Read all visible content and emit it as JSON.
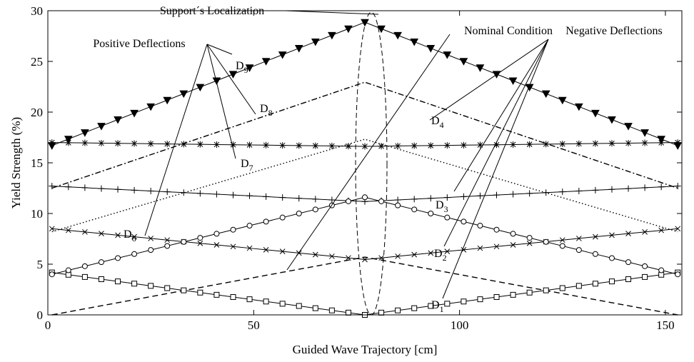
{
  "chart_data": {
    "type": "line",
    "xlabel": "Guided Wave Trajectory [cm]",
    "ylabel": "Yield Strength (%)",
    "xlim": [
      0,
      154
    ],
    "ylim": [
      0,
      30
    ],
    "xticks": [
      0,
      50,
      100,
      150
    ],
    "yticks": [
      0,
      5,
      10,
      15,
      20,
      25,
      30
    ],
    "annotations": [
      "Support´s Localization",
      "Positive Deflections",
      "Negative Deflections"
    ],
    "x": [
      1,
      5,
      9,
      13,
      17,
      21,
      25,
      29,
      33,
      37,
      41,
      45,
      49,
      53,
      57,
      61,
      65,
      69,
      73,
      77,
      81,
      85,
      89,
      93,
      97,
      101,
      105,
      109,
      113,
      117,
      121,
      125,
      129,
      133,
      137,
      141,
      145,
      149,
      153
    ],
    "series": [
      {
        "name": "Nominal  Condition",
        "color": "#000000",
        "dash": "dashed",
        "marker": "none",
        "values": [
          0,
          0.3,
          0.6,
          0.9,
          1.2,
          1.5,
          1.8,
          2.1,
          2.4,
          2.7,
          3,
          3.3,
          3.6,
          3.9,
          4.2,
          4.5,
          4.8,
          5.1,
          5.4,
          5.7,
          5.4,
          5.1,
          4.8,
          4.5,
          4.2,
          3.9,
          3.6,
          3.3,
          3,
          2.7,
          2.4,
          2.1,
          1.8,
          1.5,
          1.2,
          0.9,
          0.6,
          0.3,
          0
        ]
      },
      {
        "name": "D1",
        "color": "#000000",
        "dash": "solid",
        "marker": "square",
        "values": [
          4.18,
          3.96,
          3.74,
          3.52,
          3.3,
          3.08,
          2.86,
          2.64,
          2.42,
          2.2,
          1.98,
          1.76,
          1.54,
          1.32,
          1.1,
          0.88,
          0.66,
          0.44,
          0.22,
          0,
          0.22,
          0.44,
          0.66,
          0.88,
          1.1,
          1.32,
          1.54,
          1.76,
          1.98,
          2.2,
          2.42,
          2.64,
          2.86,
          3.08,
          3.3,
          3.52,
          3.74,
          3.96,
          4.18
        ]
      },
      {
        "name": "D2",
        "color": "#000000",
        "dash": "solid",
        "marker": "x",
        "values": [
          8.5,
          8.34,
          8.18,
          8.02,
          7.86,
          7.7,
          7.54,
          7.38,
          7.22,
          7.06,
          6.9,
          6.74,
          6.58,
          6.42,
          6.26,
          6.1,
          5.94,
          5.78,
          5.62,
          5.46,
          5.62,
          5.78,
          5.94,
          6.1,
          6.26,
          6.42,
          6.58,
          6.74,
          6.9,
          7.06,
          7.22,
          7.38,
          7.54,
          7.7,
          7.86,
          8.02,
          8.18,
          8.34,
          8.5
        ]
      },
      {
        "name": "D3",
        "color": "#000000",
        "dash": "solid",
        "marker": "plus",
        "values": [
          12.7,
          12.62,
          12.54,
          12.46,
          12.38,
          12.3,
          12.22,
          12.14,
          12.06,
          11.98,
          11.9,
          11.82,
          11.74,
          11.66,
          11.58,
          11.5,
          11.42,
          11.34,
          11.26,
          11.18,
          11.26,
          11.34,
          11.42,
          11.5,
          11.58,
          11.66,
          11.74,
          11.82,
          11.9,
          11.98,
          12.06,
          12.14,
          12.22,
          12.3,
          12.38,
          12.46,
          12.54,
          12.62,
          12.7
        ]
      },
      {
        "name": "D4",
        "color": "#000000",
        "dash": "solid",
        "marker": "asterisk",
        "values": [
          17,
          16.98,
          16.96,
          16.94,
          16.92,
          16.9,
          16.88,
          16.86,
          16.84,
          16.82,
          16.8,
          16.78,
          16.76,
          16.74,
          16.72,
          16.7,
          16.68,
          16.66,
          16.64,
          16.62,
          16.64,
          16.66,
          16.68,
          16.7,
          16.72,
          16.74,
          16.76,
          16.78,
          16.8,
          16.82,
          16.84,
          16.86,
          16.88,
          16.9,
          16.92,
          16.94,
          16.96,
          16.98,
          17
        ]
      },
      {
        "name": "D6",
        "color": "#000000",
        "dash": "solid",
        "marker": "circle",
        "values": [
          4,
          4.4,
          4.8,
          5.2,
          5.6,
          6,
          6.4,
          6.8,
          7.2,
          7.6,
          8,
          8.4,
          8.8,
          9.2,
          9.6,
          10,
          10.4,
          10.8,
          11.2,
          11.6,
          11.2,
          10.8,
          10.4,
          10,
          9.6,
          9.2,
          8.8,
          8.4,
          8,
          7.6,
          7.2,
          6.8,
          6.4,
          6,
          5.6,
          5.2,
          4.8,
          4.4,
          4
        ]
      },
      {
        "name": "D7",
        "color": "#000000",
        "dash": "dotted",
        "marker": "none",
        "values": [
          8.2,
          8.68,
          9.16,
          9.64,
          10.12,
          10.6,
          11.08,
          11.56,
          12.04,
          12.52,
          13,
          13.48,
          13.96,
          14.44,
          14.92,
          15.4,
          15.88,
          16.36,
          16.84,
          17.32,
          16.84,
          16.36,
          15.88,
          15.4,
          14.92,
          14.44,
          13.96,
          13.48,
          13,
          12.52,
          12.04,
          11.56,
          11.08,
          10.6,
          10.12,
          9.64,
          9.16,
          8.68,
          8.2
        ]
      },
      {
        "name": "D8",
        "color": "#000000",
        "dash": "dashdot",
        "marker": "none",
        "values": [
          12.5,
          13.05,
          13.6,
          14.15,
          14.7,
          15.25,
          15.8,
          16.35,
          16.9,
          17.45,
          18,
          18.55,
          19.1,
          19.65,
          20.2,
          20.75,
          21.3,
          21.85,
          22.4,
          22.95,
          22.4,
          21.85,
          21.3,
          20.75,
          20.2,
          19.65,
          19.1,
          18.55,
          18,
          17.45,
          16.9,
          16.35,
          15.8,
          15.25,
          14.7,
          14.15,
          13.6,
          13.05,
          12.5
        ]
      },
      {
        "name": "D9",
        "color": "#000000",
        "dash": "solid",
        "marker": "triangle-down",
        "values": [
          16.7,
          17.34,
          17.98,
          18.62,
          19.26,
          19.9,
          20.54,
          21.18,
          21.82,
          22.46,
          23.1,
          23.74,
          24.38,
          25.02,
          25.66,
          26.3,
          26.94,
          27.58,
          28.22,
          28.86,
          28.22,
          27.58,
          26.94,
          26.3,
          25.66,
          25.02,
          24.38,
          23.74,
          23.1,
          22.46,
          21.82,
          21.18,
          20.54,
          19.9,
          19.26,
          18.62,
          17.98,
          17.34,
          16.7
        ]
      }
    ]
  }
}
